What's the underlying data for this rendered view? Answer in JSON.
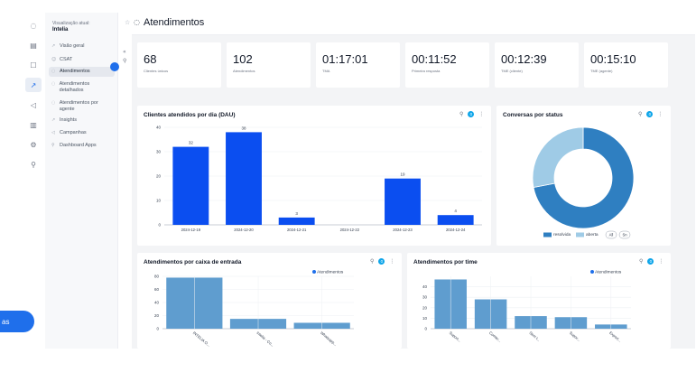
{
  "sidebar": {
    "view_caption": "Visualização atual:",
    "view_value": "Intelia",
    "items": [
      {
        "label": "Visão geral",
        "icon": "trend-icon"
      },
      {
        "label": "CSAT",
        "icon": "smile-icon"
      },
      {
        "label": "Atendimentos",
        "icon": "chat-icon",
        "active": true
      },
      {
        "label": "Atendimentos detalhados",
        "icon": "chat-icon"
      },
      {
        "label": "Atendimentos por agente",
        "icon": "chat-icon"
      },
      {
        "label": "Insights",
        "icon": "trend-icon"
      },
      {
        "label": "Campanhas",
        "icon": "megaphone-icon"
      },
      {
        "label": "Dashboard Apps",
        "icon": "link-icon"
      }
    ]
  },
  "header": {
    "title": "Atendimentos"
  },
  "kpis": [
    {
      "value": "68",
      "label": "Clientes únicos"
    },
    {
      "value": "102",
      "label": "Atendimentos"
    },
    {
      "value": "01:17:01",
      "label": "TMA"
    },
    {
      "value": "00:11:52",
      "label": "Primeira resposta"
    },
    {
      "value": "00:12:39",
      "label": "TME (cliente)"
    },
    {
      "value": "00:15:10",
      "label": "TME (agente)"
    }
  ],
  "charts": {
    "dau": {
      "title": "Clientes atendidos por dia (DAU)",
      "filter_count": "0"
    },
    "status": {
      "title": "Conversas por status",
      "filter_count": "0"
    },
    "inbox": {
      "title": "Atendimentos por caixa de entrada",
      "filter_count": "0"
    },
    "team": {
      "title": "Atendimentos por time",
      "filter_count": "0"
    }
  },
  "fab_label": "as",
  "colors": {
    "accent": "#1f6feb",
    "bar_blue": "#0b4ef0",
    "steel": "#5f9dcf",
    "resolved": "#2f7fc1",
    "open": "#9fcbe6"
  },
  "chart_data": [
    {
      "type": "bar",
      "title": "Clientes atendidos por dia (DAU)",
      "categories": [
        "2024-12-19",
        "2024-12-20",
        "2024-12-21",
        "2024-12-22",
        "2024-12-23",
        "2024-12-24"
      ],
      "values": [
        32,
        38,
        3,
        0,
        19,
        4
      ],
      "data_labels": [
        "32",
        "38",
        "3",
        "",
        "19",
        "4"
      ],
      "ylim": [
        0,
        40
      ],
      "yticks": [
        0,
        10,
        20,
        30,
        40
      ]
    },
    {
      "type": "pie",
      "title": "Conversas por status",
      "donut": true,
      "slices": [
        {
          "name": "resolvida",
          "value": 72,
          "color": "#2f7fc1"
        },
        {
          "name": "aberta",
          "value": 28,
          "color": "#9fcbe6"
        }
      ],
      "legend": [
        "resolvida",
        "aberta",
        "All",
        "Sn"
      ]
    },
    {
      "type": "bar",
      "title": "Atendimentos por caixa de entrada",
      "series_name": "Atendimentos",
      "categories": [
        "INTELIA O...",
        "Intelia - Co...",
        "Whatsapp..."
      ],
      "values": [
        78,
        15,
        9
      ],
      "ylim": [
        0,
        80
      ],
      "yticks": [
        0,
        20,
        40,
        60,
        80
      ]
    },
    {
      "type": "bar",
      "title": "Atendimentos por time",
      "series_name": "Atendimentos",
      "categories": [
        "Suport...",
        "Comer...",
        "Sem t...",
        "Supor...",
        "Export..."
      ],
      "values": [
        47,
        28,
        12,
        11,
        4
      ],
      "ylim": [
        0,
        50
      ],
      "yticks": [
        0,
        10,
        20,
        30,
        40
      ]
    }
  ]
}
